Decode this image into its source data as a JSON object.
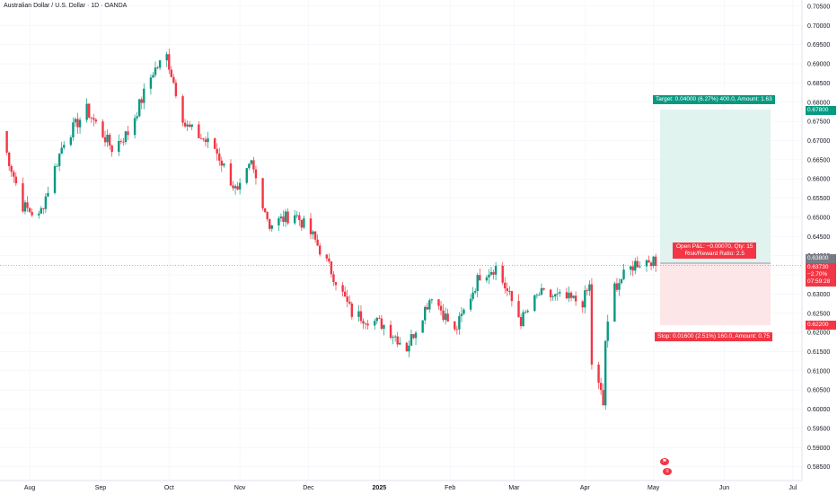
{
  "header": {
    "title": "Australian Dollar / U.S. Dollar · 1D · OANDA"
  },
  "colors": {
    "up": "#089981",
    "down": "#f23645",
    "target_zone": "#e0f3ef",
    "stop_zone": "#fde6e7",
    "grid": "#f0f3fa",
    "axis_text": "#131722"
  },
  "price_axis": {
    "ticks": [
      "0.70500",
      "0.70000",
      "0.69500",
      "0.69000",
      "0.68500",
      "0.68000",
      "0.67500",
      "0.67000",
      "0.66500",
      "0.66000",
      "0.65500",
      "0.65000",
      "0.64500",
      "0.64000",
      "0.63500",
      "0.63000",
      "0.62500",
      "0.62000",
      "0.61500",
      "0.61000",
      "0.60500",
      "0.60000",
      "0.59500",
      "0.59000",
      "0.58500"
    ]
  },
  "time_axis": {
    "labels": [
      "Aug",
      "Sep",
      "Oct",
      "Nov",
      "Dec",
      "2025",
      "Feb",
      "Mar",
      "Apr",
      "May",
      "Jun",
      "Jul"
    ]
  },
  "position": {
    "target_label": "Target: 0.04000 (6.27%) 400.0, Amount: 1.63",
    "target_price": "0.67800",
    "entry_price": "0.63800",
    "current_price": "0.63730",
    "current_change": "−2.70%",
    "countdown": "07:59:28",
    "stop_price": "0.62200",
    "pnl_label": "Open P&L: −0.00070, Qty: 15",
    "rr_label": "Risk/Reward Ratio: 2.5",
    "stop_label": "Stop: 0.01600 (2.51%) 160.0, Amount: 0.75"
  },
  "chart_data": {
    "type": "candlestick",
    "title": "Australian Dollar / U.S. Dollar · 1D · OANDA",
    "ylim": [
      0.585,
      0.705
    ],
    "anchors": [
      [
        "2024-07-19",
        0.6725
      ],
      [
        "2024-07-29",
        0.653
      ],
      [
        "2024-08-05",
        0.65
      ],
      [
        "2024-08-16",
        0.67
      ],
      [
        "2024-08-26",
        0.678
      ],
      [
        "2024-09-06",
        0.668
      ],
      [
        "2024-09-13",
        0.672
      ],
      [
        "2024-09-24",
        0.688
      ],
      [
        "2024-09-30",
        0.692
      ],
      [
        "2024-10-08",
        0.674
      ],
      [
        "2024-10-21",
        0.668
      ],
      [
        "2024-10-31",
        0.656
      ],
      [
        "2024-11-06",
        0.664
      ],
      [
        "2024-11-14",
        0.648
      ],
      [
        "2024-11-25",
        0.651
      ],
      [
        "2024-12-03",
        0.645
      ],
      [
        "2024-12-11",
        0.636
      ],
      [
        "2024-12-20",
        0.625
      ],
      [
        "2025-01-03",
        0.622
      ],
      [
        "2025-01-13",
        0.616
      ],
      [
        "2025-01-24",
        0.63
      ],
      [
        "2025-02-03",
        0.62
      ],
      [
        "2025-02-14",
        0.635
      ],
      [
        "2025-02-21",
        0.637
      ],
      [
        "2025-03-04",
        0.623
      ],
      [
        "2025-03-12",
        0.63
      ],
      [
        "2025-03-31",
        0.628
      ],
      [
        "2025-04-03",
        0.632
      ],
      [
        "2025-04-04",
        0.612
      ],
      [
        "2025-04-08",
        0.604
      ],
      [
        "2025-04-09",
        0.601
      ],
      [
        "2025-04-10",
        0.618
      ],
      [
        "2025-04-14",
        0.632
      ],
      [
        "2025-04-23",
        0.638
      ],
      [
        "2025-04-30",
        0.639
      ],
      [
        "2025-05-02",
        0.6373
      ]
    ],
    "xlim": [
      "2024-07-19",
      "2025-07-05"
    ]
  }
}
